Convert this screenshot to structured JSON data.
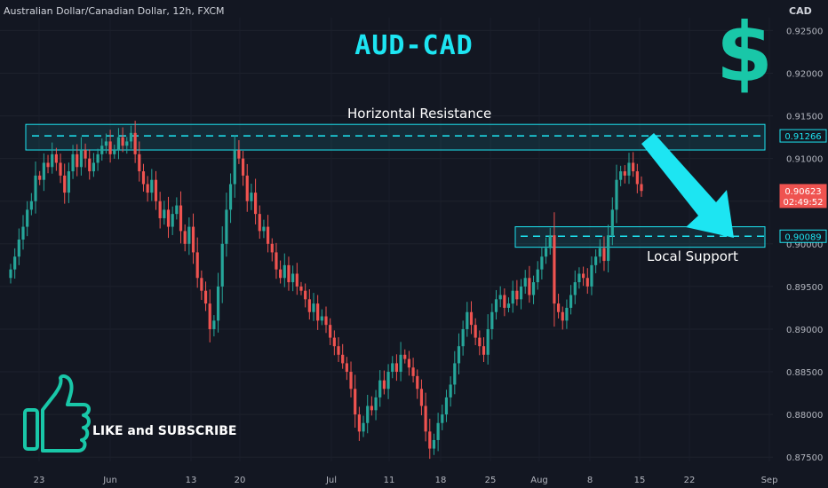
{
  "header": {
    "symbol": "Australian Dollar/Canadian Dollar, 12h, FXCM",
    "currency": "CAD"
  },
  "title": "AUD-CAD",
  "annotations": {
    "resistance_label": "Horizontal Resistance",
    "support_label": "Local Support",
    "cta": "LIKE and SUBSCRIBE"
  },
  "icons": {
    "dollar": "dollar-sign-icon",
    "thumb": "thumbs-up-icon",
    "arrow": "down-arrow-icon"
  },
  "colors": {
    "background": "#131722",
    "up": "#26a69a",
    "down": "#ef5350",
    "accent": "#1de5f2",
    "dollar": "#19c7a8"
  },
  "chart_data": {
    "type": "candlestick",
    "ylim": [
      0.8745,
      0.9265
    ],
    "y_ticks": [
      "0.92500",
      "0.92000",
      "0.91500",
      "0.91000",
      "0.90500",
      "0.90000",
      "0.89500",
      "0.89000",
      "0.88500",
      "0.88000",
      "0.87500"
    ],
    "x_ticks": [
      "23",
      "Jun",
      "13",
      "20",
      "Jul",
      "11",
      "18",
      "25",
      "Aug",
      "8",
      "15",
      "22",
      "Sep"
    ],
    "resistance_level": "0.91266",
    "support_level": "0.90089",
    "current_price": "0.90623",
    "countdown": "02:49:52",
    "resistance_zone": [
      0.911,
      0.914
    ],
    "support_zone": [
      0.8996,
      0.902
    ],
    "closes": [
      0.897,
      0.8985,
      0.9005,
      0.902,
      0.904,
      0.905,
      0.908,
      0.9075,
      0.9095,
      0.909,
      0.9105,
      0.9095,
      0.908,
      0.906,
      0.9085,
      0.9105,
      0.909,
      0.911,
      0.91,
      0.9085,
      0.9095,
      0.9105,
      0.9115,
      0.912,
      0.9105,
      0.911,
      0.9125,
      0.9115,
      0.912,
      0.913,
      0.9105,
      0.9085,
      0.907,
      0.906,
      0.9075,
      0.905,
      0.903,
      0.904,
      0.902,
      0.9035,
      0.9045,
      0.9015,
      0.9,
      0.902,
      0.899,
      0.896,
      0.8945,
      0.893,
      0.89,
      0.891,
      0.895,
      0.9,
      0.904,
      0.907,
      0.911,
      0.91,
      0.908,
      0.905,
      0.906,
      0.9035,
      0.9015,
      0.902,
      0.9,
      0.899,
      0.897,
      0.896,
      0.8975,
      0.8955,
      0.8965,
      0.895,
      0.8945,
      0.8935,
      0.892,
      0.893,
      0.891,
      0.8915,
      0.8905,
      0.889,
      0.888,
      0.887,
      0.886,
      0.885,
      0.883,
      0.88,
      0.878,
      0.879,
      0.881,
      0.8805,
      0.882,
      0.884,
      0.883,
      0.885,
      0.886,
      0.885,
      0.887,
      0.8865,
      0.8855,
      0.8845,
      0.883,
      0.881,
      0.878,
      0.876,
      0.877,
      0.879,
      0.88,
      0.882,
      0.8835,
      0.886,
      0.888,
      0.89,
      0.892,
      0.8905,
      0.889,
      0.888,
      0.887,
      0.89,
      0.892,
      0.8935,
      0.894,
      0.8925,
      0.893,
      0.8945,
      0.8935,
      0.895,
      0.896,
      0.894,
      0.8955,
      0.897,
      0.8985,
      0.8995,
      0.901,
      0.893,
      0.892,
      0.891,
      0.8925,
      0.894,
      0.8955,
      0.8965,
      0.896,
      0.895,
      0.8975,
      0.8985,
      0.8995,
      0.898,
      0.901,
      0.904,
      0.9075,
      0.9085,
      0.908,
      0.9095,
      0.9085,
      0.907,
      0.9062
    ]
  }
}
